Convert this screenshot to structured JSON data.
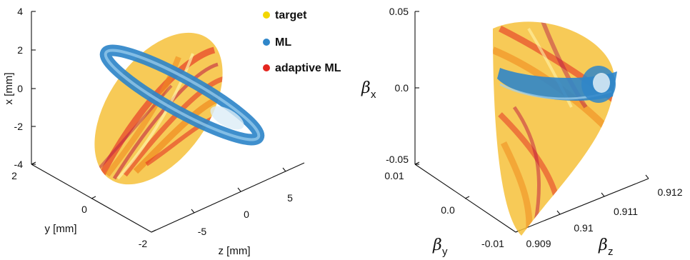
{
  "chart_data": [
    {
      "type": "scatter",
      "projection": "3d",
      "title": "",
      "xlabel": "z [mm]",
      "ylabel": "y [mm]",
      "zlabel": "x [mm]",
      "x_ticks": [
        "-5",
        "0",
        "5"
      ],
      "y_ticks": [
        "2",
        "0",
        "-2"
      ],
      "z_ticks": [
        "4",
        "2",
        "0",
        "-2",
        "-4"
      ],
      "xlim": [
        -8,
        8
      ],
      "ylim": [
        -2,
        2
      ],
      "zlim": [
        -4,
        4
      ],
      "legend": {
        "position": "top-right"
      },
      "series": [
        {
          "name": "target",
          "color": "#f2d600",
          "shape": "elongated tilted ellipsoid"
        },
        {
          "name": "ML",
          "color": "#2f86c9",
          "shape": "thin flat ring"
        },
        {
          "name": "adaptive ML",
          "color": "#e4261f",
          "shape": "elongated tilted ellipsoid"
        }
      ]
    },
    {
      "type": "scatter",
      "projection": "3d",
      "title": "",
      "xlabel_symbol": "β",
      "xlabel_sub": "z",
      "ylabel_symbol": "β",
      "ylabel_sub": "y",
      "zlabel_symbol": "β",
      "zlabel_sub": "x",
      "x_ticks": [
        "0.909",
        "0.91",
        "0.911",
        "0.912"
      ],
      "y_ticks": [
        "0.01",
        "0.0",
        "-0.01"
      ],
      "z_ticks": [
        "0.05",
        "0.0",
        "-0.05"
      ],
      "xlim": [
        0.909,
        0.912
      ],
      "ylim": [
        -0.01,
        0.01
      ],
      "zlim": [
        -0.05,
        0.05
      ],
      "series": [
        {
          "name": "target",
          "color": "#f2d600"
        },
        {
          "name": "ML",
          "color": "#2f86c9"
        },
        {
          "name": "adaptive ML",
          "color": "#e4261f"
        }
      ]
    }
  ],
  "colors": {
    "target": "#f2d600",
    "ml": "#2f86c9",
    "adaptive": "#e4261f",
    "orange_mix": "#f08a1e"
  }
}
